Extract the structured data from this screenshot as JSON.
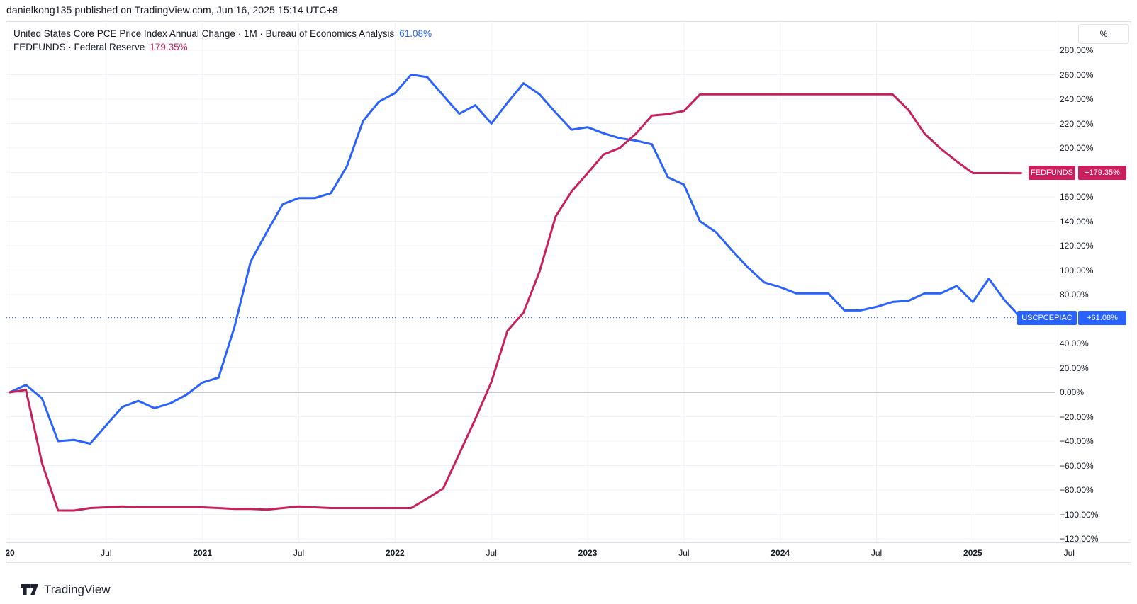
{
  "meta": {
    "publish_line": "danielkong135 published on TradingView.com, Jun 16, 2025 15:14 UTC+8"
  },
  "legend": {
    "rows": [
      {
        "text": "United States Core PCE Price Index Annual Change · 1M · Bureau of Economics Analysis",
        "value": "61.08%"
      },
      {
        "text": "FEDFUNDS · Federal Reserve",
        "value": "179.35%"
      }
    ]
  },
  "axis": {
    "percent_button": "%"
  },
  "badges": {
    "fedfunds": {
      "label": "FEDFUNDS",
      "value": "+179.35%"
    },
    "uscpcepiac": {
      "label": "USCPCEPIAC",
      "value": "+61.08%"
    }
  },
  "footer": {
    "brand": "TradingView"
  },
  "colors": {
    "blue": "#2962FF",
    "pink": "#C7205D",
    "grid": "#F0F3FA",
    "zero": "#9598A1",
    "border": "#E0E3EB",
    "text": "#131722"
  },
  "chart_data": {
    "type": "line",
    "title": "United States Core PCE Price Index Annual Change vs FEDFUNDS (percent change, monthly)",
    "y_unit": "%",
    "x_start": "2020-01",
    "x_step_months": 1,
    "ylim": [
      -130,
      295
    ],
    "grid": true,
    "legend_position": "top-left",
    "x_ticks": [
      {
        "label": "20",
        "month": 0,
        "bold": true
      },
      {
        "label": "Jul",
        "month": 6,
        "bold": false
      },
      {
        "label": "2021",
        "month": 12,
        "bold": true
      },
      {
        "label": "Jul",
        "month": 18,
        "bold": false
      },
      {
        "label": "2022",
        "month": 24,
        "bold": true
      },
      {
        "label": "Jul",
        "month": 30,
        "bold": false
      },
      {
        "label": "2023",
        "month": 36,
        "bold": true
      },
      {
        "label": "Jul",
        "month": 42,
        "bold": false
      },
      {
        "label": "2024",
        "month": 48,
        "bold": true
      },
      {
        "label": "Jul",
        "month": 54,
        "bold": false
      },
      {
        "label": "2025",
        "month": 60,
        "bold": true
      },
      {
        "label": "Jul",
        "month": 66,
        "bold": false
      }
    ],
    "y_tick_labels": [
      {
        "value": 280,
        "label": "280.00%"
      },
      {
        "value": 260,
        "label": "260.00%"
      },
      {
        "value": 240,
        "label": "240.00%"
      },
      {
        "value": 220,
        "label": "220.00%"
      },
      {
        "value": 200,
        "label": "200.00%"
      },
      {
        "value": 160,
        "label": "160.00%"
      },
      {
        "value": 140,
        "label": "140.00%"
      },
      {
        "value": 120,
        "label": "120.00%"
      },
      {
        "value": 100,
        "label": "100.00%"
      },
      {
        "value": 80,
        "label": "80.00%"
      },
      {
        "value": 40,
        "label": "40.00%"
      },
      {
        "value": 20,
        "label": "20.00%"
      },
      {
        "value": 0,
        "label": "0.00%"
      },
      {
        "value": -20,
        "label": "−20.00%"
      },
      {
        "value": -40,
        "label": "−40.00%"
      },
      {
        "value": -60,
        "label": "−60.00%"
      },
      {
        "value": -80,
        "label": "−80.00%"
      },
      {
        "value": -100,
        "label": "−100.00%"
      },
      {
        "value": -120,
        "label": "−120.00%"
      }
    ],
    "y_grid_values": [
      280,
      260,
      240,
      220,
      200,
      180,
      160,
      140,
      120,
      100,
      80,
      60,
      40,
      20,
      -20,
      -40,
      -60,
      -80,
      -100,
      -120
    ],
    "zero_line_value": 0,
    "series": [
      {
        "name": "USCPCEPIAC",
        "full_name": "United States Core PCE Price Index Annual Change · 1M · Bureau of Economics Analysis",
        "color_key": "blue",
        "last_value": 61.08,
        "price_line_value": 61.08,
        "values": [
          0,
          6,
          -5,
          -40,
          -39,
          -42,
          -27,
          -12,
          -7,
          -13,
          -9,
          -2,
          8,
          12,
          54,
          107,
          131,
          154,
          159,
          159,
          163,
          185,
          222,
          238,
          245,
          260,
          258,
          243,
          228,
          235,
          220,
          237,
          253,
          244,
          229,
          215,
          217,
          212,
          208,
          206,
          203,
          176,
          170,
          140,
          131,
          116,
          102,
          90,
          86,
          81,
          81,
          81,
          67,
          67,
          70,
          74,
          75,
          81,
          81,
          87,
          74,
          93,
          75,
          61.08
        ]
      },
      {
        "name": "FEDFUNDS",
        "full_name": "FEDFUNDS · Federal Reserve",
        "color_key": "pink",
        "last_value": 179.35,
        "price_line_value": null,
        "values": [
          0,
          1.9,
          -58,
          -96.8,
          -96.8,
          -94.8,
          -94.2,
          -93.5,
          -94.2,
          -94.2,
          -94.2,
          -94.2,
          -94.2,
          -94.8,
          -95.5,
          -95.5,
          -96.1,
          -94.8,
          -93.5,
          -94.2,
          -94.8,
          -94.8,
          -94.8,
          -94.8,
          -94.8,
          -94.8,
          -87.1,
          -78.7,
          -50.3,
          -21.9,
          8.4,
          50.3,
          65.2,
          98.7,
          143.9,
          164.5,
          179.4,
          194.8,
          200,
          211.6,
          226.5,
          227.7,
          230.3,
          243.9,
          243.9,
          243.9,
          243.9,
          243.9,
          243.9,
          243.9,
          243.9,
          243.9,
          243.9,
          243.9,
          243.9,
          243.9,
          231,
          211.6,
          199.4,
          189,
          179.4,
          179.4,
          179.4,
          179.35
        ]
      }
    ]
  }
}
